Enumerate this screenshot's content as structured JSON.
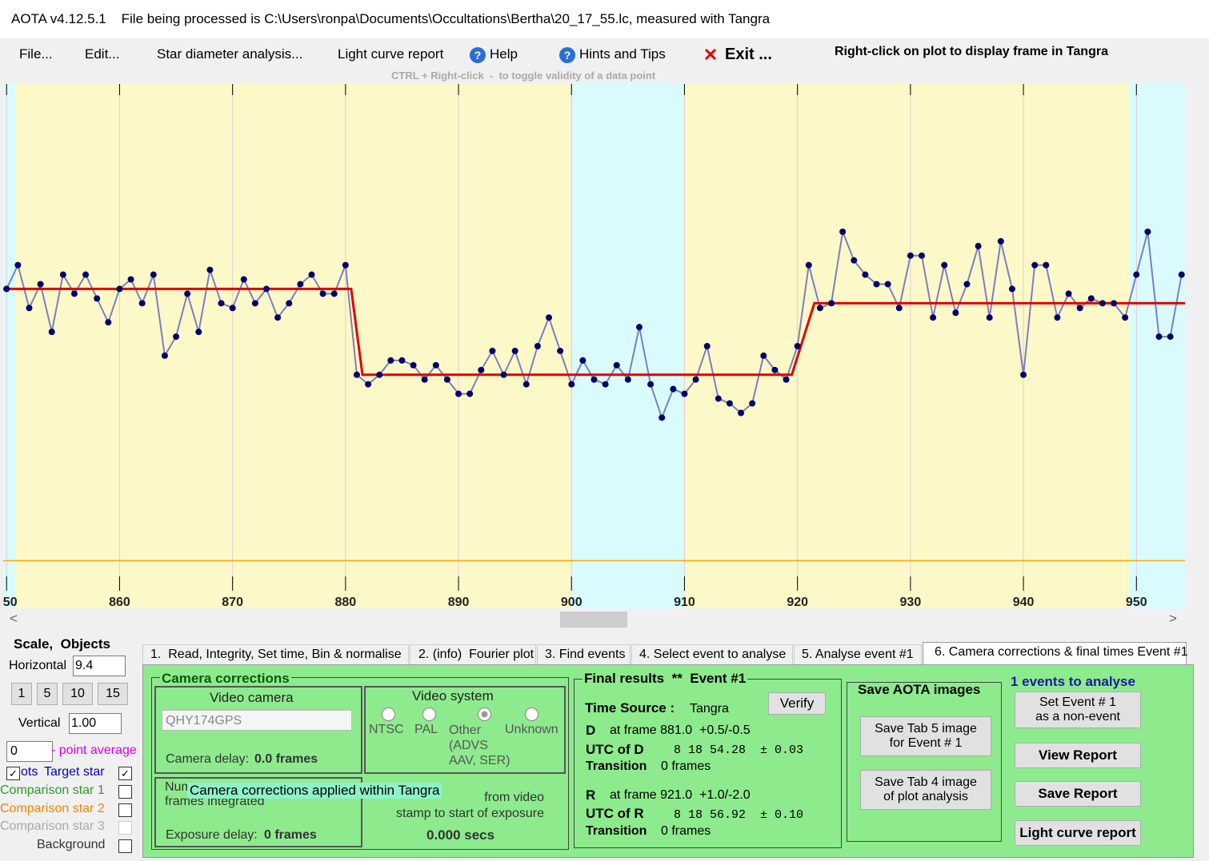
{
  "title_bar": "AOTA v4.12.5.1    File being processed is C:\\Users\\ronpa\\Documents\\Occultations\\Bertha\\20_17_55.lc, measured with Tangra",
  "menu": [
    "File...",
    "Edit...",
    "Star diameter analysis...",
    "Light curve report",
    "Help",
    "Hints and Tips",
    "Exit ..."
  ],
  "right_click_hint": "Right-click on plot to display frame in Tangra",
  "ctrl_hint": "CTRL + Right-click  -  to toggle validity of a data point",
  "chart_data": {
    "type": "line",
    "xlim": [
      849.7,
      954.3
    ],
    "ylim": [
      -10,
      100
    ],
    "xticks": [
      850,
      860,
      870,
      880,
      890,
      900,
      910,
      920,
      930,
      940,
      950
    ],
    "shading": [
      {
        "x": [
          849.7,
          850.8
        ],
        "color": "#d9fbfd"
      },
      {
        "x": [
          850.8,
          900
        ],
        "color": "#fdf8c8"
      },
      {
        "x": [
          900,
          910
        ],
        "color": "#d9fbfd"
      },
      {
        "x": [
          910,
          949.4
        ],
        "color": "#fdf8c8"
      },
      {
        "x": [
          949.4,
          954.3
        ],
        "color": "#d9fbfd"
      }
    ],
    "series": [
      {
        "name": "Target star",
        "color": "#00006a",
        "line_color": "#7b7fc0",
        "x": [
          850,
          851,
          852,
          853,
          854,
          855,
          856,
          857,
          858,
          859,
          860,
          861,
          862,
          863,
          864,
          865,
          866,
          867,
          868,
          869,
          870,
          871,
          872,
          873,
          874,
          875,
          876,
          877,
          878,
          879,
          880,
          881,
          882,
          883,
          884,
          885,
          886,
          887,
          888,
          889,
          890,
          891,
          892,
          893,
          894,
          895,
          896,
          897,
          898,
          899,
          900,
          901,
          902,
          903,
          904,
          905,
          906,
          907,
          908,
          909,
          910,
          911,
          912,
          913,
          914,
          915,
          916,
          917,
          918,
          919,
          920,
          921,
          922,
          923,
          924,
          925,
          926,
          927,
          928,
          929,
          930,
          931,
          932,
          933,
          934,
          935,
          936,
          937,
          938,
          939,
          940,
          941,
          942,
          943,
          944,
          945,
          946,
          947,
          948,
          949,
          950,
          951,
          952,
          953,
          954
        ],
        "values": [
          57,
          62,
          53,
          58,
          48,
          60,
          56,
          60,
          55,
          50,
          57,
          59,
          54,
          60,
          43,
          47,
          56,
          48,
          61,
          54,
          53,
          59,
          54,
          57,
          51,
          54,
          58,
          60,
          56,
          56,
          62,
          39,
          37,
          39,
          42,
          42,
          41,
          38,
          41,
          38,
          35,
          35,
          40,
          44,
          39,
          44,
          37,
          45,
          51,
          44,
          37,
          42,
          38,
          37,
          41,
          38,
          49,
          37,
          30,
          36,
          35,
          38,
          45,
          34,
          33,
          31,
          33,
          43,
          40,
          38,
          45,
          62,
          53,
          54,
          69,
          63,
          60,
          58,
          58,
          53,
          64,
          64,
          51,
          62,
          52,
          58,
          66,
          51,
          67,
          57,
          39,
          62,
          62,
          51,
          56,
          53,
          55,
          54,
          54,
          51,
          60,
          69,
          47,
          47,
          60
        ]
      }
    ],
    "model": {
      "color": "#e00000",
      "x": [
        849.7,
        880.5,
        881.5,
        919.5,
        921.5,
        954.3
      ],
      "values": [
        57,
        57,
        39,
        39,
        54,
        54
      ]
    },
    "zero_line_color": "#ffa500"
  },
  "left_panel": {
    "title": "Scale,  Objects",
    "horizontal_label": "Horizontal",
    "horizontal_value": "9.4",
    "scale_buttons": [
      "1",
      "5",
      "10",
      "15"
    ],
    "vertical_label": "Vertical",
    "vertical_value": "1.00",
    "point_average_value": "0",
    "point_average_label": "- point average",
    "plots_label": "ots",
    "objects": [
      "Target star",
      "Comparison star 1",
      "Comparison star 2",
      "Comparison star 3",
      "Background"
    ]
  },
  "tabs": [
    "1.  Read, Integrity, Set time, Bin & normalise",
    "2. (info)  Fourier plot",
    "3. Find events",
    "4. Select event to analyse",
    "5. Analyse event #1",
    "6. Camera corrections & final times Event #1"
  ],
  "camera_corrections": {
    "title": "Camera corrections",
    "video_camera": "Video camera",
    "camera": "QHY174GPS",
    "camera_delay_label": "Camera delay: ",
    "camera_delay": "0.0 frames",
    "video_system": "Video system",
    "systems": [
      "NTSC",
      "PAL",
      "Other\n(ADVS\nAAV, SER)",
      "Unknown"
    ],
    "frames_label": "Num\nframes integrated",
    "tooltip": "Camera corrections applied within Tangra",
    "stamp_label": "from video\nstamp to start of exposure",
    "stamp_value": "0.000 secs",
    "exposure_delay_label": "Exposure delay: ",
    "exposure_delay": "0 frames"
  },
  "final_results": {
    "title": "Final results  **  Event #1",
    "verify": "Verify",
    "time_source_label": "Time Source :",
    "time_source": "Tangra",
    "d": {
      "label": "D",
      "frame": "at frame 881.0  +0.5/-0.5",
      "utc_label": "UTC of D",
      "utc": "8 18 54.28  ± 0.03",
      "transition_label": "Transition",
      "transition": "0 frames"
    },
    "r": {
      "label": "R",
      "frame": "at frame 921.0  +1.0/-2.0",
      "utc_label": "UTC of R",
      "utc": "8 18 56.92  ± 0.10",
      "transition_label": "Transition",
      "transition": "0 frames"
    }
  },
  "save_images": {
    "title": "Save AOTA images",
    "tab5": "Save Tab 5 image\nfor Event # 1",
    "tab4": "Save Tab 4 image\nof plot analysis"
  },
  "events": {
    "title": "1 events to analyse",
    "non_event": "Set Event # 1\nas a non-event",
    "view_report": "View Report",
    "save_report": "Save Report",
    "light_curve_report": "Light curve report"
  }
}
